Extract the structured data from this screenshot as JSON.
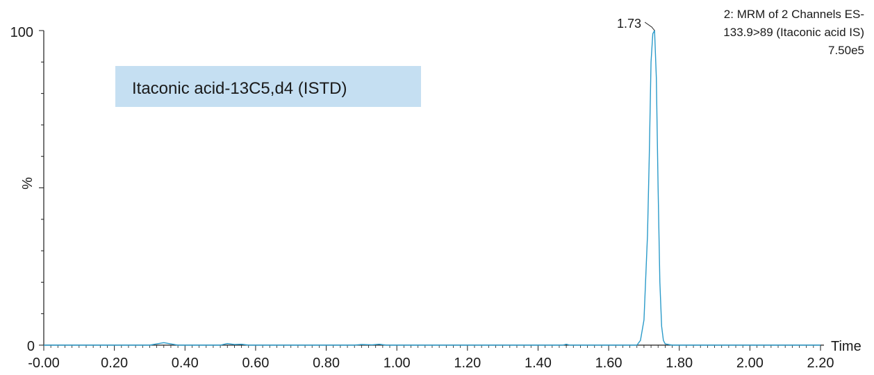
{
  "chart_data": {
    "type": "line",
    "xlabel": "Time",
    "ylabel": "%",
    "xlim": [
      0.0,
      2.2
    ],
    "ylim": [
      0,
      100
    ],
    "x_ticks": [
      "-0.00",
      "0.20",
      "0.40",
      "0.60",
      "0.80",
      "1.00",
      "1.20",
      "1.40",
      "1.60",
      "1.80",
      "2.00",
      "2.20"
    ],
    "x_tick_values": [
      0.0,
      0.2,
      0.4,
      0.6,
      0.8,
      1.0,
      1.2,
      1.4,
      1.6,
      1.8,
      2.0,
      2.2
    ],
    "y_ticks": [
      "0",
      "%",
      "100"
    ],
    "y_tick_values": [
      0,
      50,
      100
    ],
    "info_lines": [
      "2: MRM of 2 Channels ES-",
      "133.9>89 (Itaconic acid IS)",
      "7.50e5"
    ],
    "peak_label": "1.73",
    "peak_x": 1.73,
    "peak_y": 100,
    "compound_label": "Itaconic acid-13C5,d4 (ISTD)",
    "series": [
      {
        "color": "#2a9ac9",
        "x": [
          0.0,
          0.3,
          0.32,
          0.34,
          0.36,
          0.38,
          0.5,
          0.52,
          0.54,
          0.56,
          0.58,
          0.88,
          0.9,
          0.93,
          0.95,
          0.97,
          1.47,
          1.48,
          1.49,
          1.68,
          1.69,
          1.7,
          1.71,
          1.715,
          1.72,
          1.725,
          1.73,
          1.735,
          1.74,
          1.745,
          1.75,
          1.755,
          1.76,
          1.78,
          2.2
        ],
        "y": [
          0,
          0,
          0.4,
          0.8,
          0.4,
          0,
          0,
          0.5,
          0.2,
          0.3,
          0,
          0,
          0.2,
          0.1,
          0.3,
          0,
          0,
          0.3,
          0,
          0,
          1.5,
          8,
          35,
          60,
          90,
          99,
          100,
          85,
          50,
          20,
          6,
          1.5,
          0.4,
          0,
          0
        ]
      }
    ]
  }
}
